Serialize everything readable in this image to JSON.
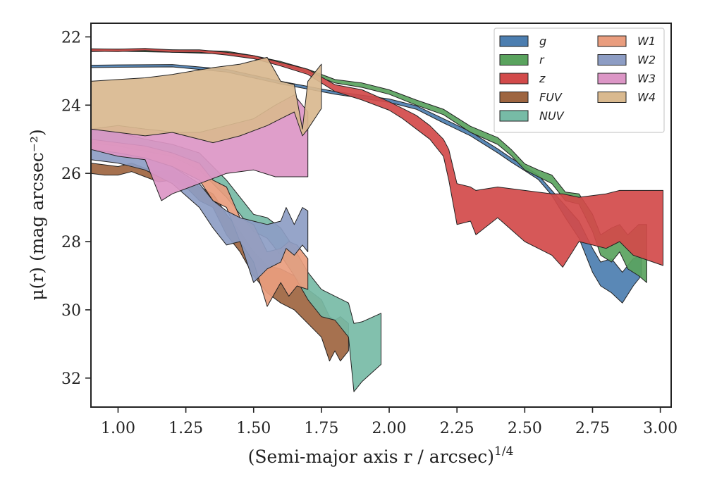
{
  "chart_data": {
    "type": "area",
    "xlabel": "(Semi-major axis r / arcsec)",
    "xlabel_exponent": "1/4",
    "ylabel": "μ(r) (mag arcsec⁻²)",
    "xlim": [
      0.9,
      3.04
    ],
    "ylim": [
      32.85,
      21.6
    ],
    "y_inverted": true,
    "grid": false,
    "legend_position": "top-right",
    "x_ticks": [
      "1.00",
      "1.25",
      "1.50",
      "1.75",
      "2.00",
      "2.25",
      "2.50",
      "2.75",
      "3.00"
    ],
    "x_tick_values": [
      1.0,
      1.25,
      1.5,
      1.75,
      2.0,
      2.25,
      2.5,
      2.75,
      3.0
    ],
    "y_ticks": [
      "22",
      "24",
      "26",
      "28",
      "30",
      "32"
    ],
    "y_tick_values": [
      22,
      24,
      26,
      28,
      30,
      32
    ],
    "series": [
      {
        "name": "g",
        "color": "#4c7eb0",
        "band": [
          [
            0.9,
            22.83,
            22.9
          ],
          [
            1.0,
            22.82,
            22.89
          ],
          [
            1.2,
            22.81,
            22.88
          ],
          [
            1.4,
            22.95,
            23.03
          ],
          [
            1.6,
            23.3,
            23.38
          ],
          [
            1.8,
            23.6,
            23.68
          ],
          [
            2.0,
            23.82,
            23.92
          ],
          [
            2.1,
            24.02,
            24.12
          ],
          [
            2.2,
            24.4,
            24.52
          ],
          [
            2.3,
            24.78,
            24.9
          ],
          [
            2.4,
            25.28,
            25.4
          ],
          [
            2.45,
            25.55,
            25.67
          ],
          [
            2.5,
            25.8,
            25.92
          ],
          [
            2.55,
            26.05,
            26.18
          ],
          [
            2.6,
            26.5,
            26.65
          ],
          [
            2.65,
            26.95,
            27.3
          ],
          [
            2.7,
            27.4,
            27.9
          ],
          [
            2.75,
            28.2,
            28.9
          ],
          [
            2.78,
            28.6,
            29.3
          ],
          [
            2.82,
            28.5,
            29.5
          ],
          [
            2.86,
            28.9,
            29.8
          ],
          [
            2.9,
            28.5,
            29.3
          ],
          [
            2.93,
            28.4,
            29.0
          ]
        ]
      },
      {
        "name": "r",
        "color": "#5aa35e",
        "band": [
          [
            0.9,
            22.37,
            22.43
          ],
          [
            1.0,
            22.36,
            22.42
          ],
          [
            1.2,
            22.38,
            22.45
          ],
          [
            1.4,
            22.42,
            22.5
          ],
          [
            1.5,
            22.55,
            22.63
          ],
          [
            1.6,
            22.72,
            22.8
          ],
          [
            1.7,
            22.95,
            23.05
          ],
          [
            1.8,
            23.25,
            23.35
          ],
          [
            1.9,
            23.35,
            23.48
          ],
          [
            2.0,
            23.55,
            23.68
          ],
          [
            2.1,
            23.85,
            24.0
          ],
          [
            2.2,
            24.12,
            24.28
          ],
          [
            2.3,
            24.62,
            24.8
          ],
          [
            2.4,
            24.95,
            25.15
          ],
          [
            2.45,
            25.3,
            25.48
          ],
          [
            2.5,
            25.72,
            25.9
          ],
          [
            2.55,
            25.9,
            26.1
          ],
          [
            2.6,
            26.05,
            26.3
          ],
          [
            2.65,
            26.55,
            26.8
          ],
          [
            2.7,
            26.6,
            26.9
          ],
          [
            2.75,
            27.2,
            27.7
          ],
          [
            2.78,
            27.8,
            28.4
          ],
          [
            2.82,
            27.6,
            28.6
          ],
          [
            2.85,
            27.5,
            28.3
          ],
          [
            2.88,
            27.8,
            28.8
          ],
          [
            2.92,
            27.5,
            29.0
          ],
          [
            2.95,
            27.5,
            29.2
          ]
        ]
      },
      {
        "name": "z",
        "color": "#d24a4a",
        "band": [
          [
            0.9,
            22.35,
            22.42
          ],
          [
            1.0,
            22.36,
            22.43
          ],
          [
            1.1,
            22.34,
            22.4
          ],
          [
            1.2,
            22.38,
            22.45
          ],
          [
            1.3,
            22.38,
            22.45
          ],
          [
            1.4,
            22.45,
            22.53
          ],
          [
            1.5,
            22.55,
            22.64
          ],
          [
            1.6,
            22.75,
            22.85
          ],
          [
            1.7,
            22.95,
            23.1
          ],
          [
            1.8,
            23.4,
            23.6
          ],
          [
            1.9,
            23.55,
            23.85
          ],
          [
            2.0,
            23.9,
            24.15
          ],
          [
            2.05,
            24.1,
            24.4
          ],
          [
            2.1,
            24.3,
            24.7
          ],
          [
            2.15,
            24.6,
            25.0
          ],
          [
            2.2,
            25.0,
            25.5
          ],
          [
            2.22,
            25.3,
            26.2
          ],
          [
            2.25,
            26.3,
            27.5
          ],
          [
            2.3,
            26.4,
            27.4
          ],
          [
            2.32,
            26.5,
            27.8
          ],
          [
            2.4,
            26.4,
            27.3
          ],
          [
            2.5,
            26.5,
            28.0
          ],
          [
            2.6,
            26.6,
            28.4
          ],
          [
            2.64,
            26.6,
            28.75
          ],
          [
            2.7,
            26.7,
            28.0
          ],
          [
            2.8,
            26.6,
            28.2
          ],
          [
            2.85,
            26.5,
            28.0
          ],
          [
            2.9,
            26.5,
            28.4
          ],
          [
            3.01,
            26.5,
            28.7
          ]
        ]
      },
      {
        "name": "FUV",
        "color": "#9e6540",
        "band": [
          [
            0.9,
            25.7,
            26.0
          ],
          [
            0.95,
            25.75,
            26.05
          ],
          [
            1.0,
            25.8,
            26.05
          ],
          [
            1.05,
            25.7,
            25.95
          ],
          [
            1.1,
            25.85,
            26.1
          ],
          [
            1.15,
            25.95,
            26.25
          ],
          [
            1.2,
            25.9,
            26.2
          ],
          [
            1.25,
            26.1,
            26.4
          ],
          [
            1.3,
            26.4,
            26.8
          ],
          [
            1.35,
            26.6,
            27.0
          ],
          [
            1.4,
            27.2,
            27.8
          ],
          [
            1.45,
            27.7,
            28.3
          ],
          [
            1.5,
            28.3,
            29.0
          ],
          [
            1.55,
            28.7,
            29.5
          ],
          [
            1.6,
            28.8,
            29.8
          ],
          [
            1.65,
            29.0,
            30.0
          ],
          [
            1.7,
            29.4,
            30.4
          ],
          [
            1.75,
            29.7,
            30.8
          ],
          [
            1.78,
            30.2,
            31.5
          ],
          [
            1.8,
            30.3,
            31.2
          ],
          [
            1.82,
            30.2,
            31.5
          ],
          [
            1.85,
            30.4,
            31.2
          ]
        ]
      },
      {
        "name": "NUV",
        "color": "#77bba6",
        "band": [
          [
            0.9,
            24.7,
            25.1
          ],
          [
            1.0,
            24.8,
            25.2
          ],
          [
            1.1,
            25.0,
            25.35
          ],
          [
            1.2,
            25.15,
            25.5
          ],
          [
            1.3,
            25.4,
            25.9
          ],
          [
            1.4,
            26.2,
            26.7
          ],
          [
            1.45,
            26.7,
            27.2
          ],
          [
            1.5,
            27.2,
            27.7
          ],
          [
            1.55,
            27.3,
            27.9
          ],
          [
            1.6,
            27.6,
            28.4
          ],
          [
            1.65,
            28.2,
            29.0
          ],
          [
            1.7,
            28.9,
            29.7
          ],
          [
            1.75,
            29.4,
            30.2
          ],
          [
            1.8,
            29.6,
            30.3
          ],
          [
            1.85,
            29.8,
            30.8
          ],
          [
            1.87,
            30.4,
            32.4
          ],
          [
            1.9,
            30.35,
            32.1
          ],
          [
            1.97,
            30.1,
            31.6
          ]
        ]
      },
      {
        "name": "W1",
        "color": "#e99d7e",
        "band": [
          [
            0.9,
            25.0,
            25.3
          ],
          [
            1.0,
            25.1,
            25.4
          ],
          [
            1.1,
            25.2,
            25.55
          ],
          [
            1.2,
            25.4,
            25.8
          ],
          [
            1.3,
            25.7,
            26.2
          ],
          [
            1.35,
            26.2,
            26.8
          ],
          [
            1.4,
            26.4,
            27.0
          ],
          [
            1.45,
            27.3,
            28.0
          ],
          [
            1.5,
            27.5,
            28.6
          ],
          [
            1.55,
            28.3,
            29.9
          ],
          [
            1.6,
            28.2,
            29.2
          ],
          [
            1.63,
            28.0,
            29.6
          ],
          [
            1.66,
            28.1,
            29.3
          ],
          [
            1.7,
            28.5,
            29.4
          ]
        ]
      },
      {
        "name": "W2",
        "color": "#8d9dc4",
        "band": [
          [
            0.9,
            25.3,
            25.6
          ],
          [
            1.0,
            25.4,
            25.7
          ],
          [
            1.1,
            25.55,
            25.9
          ],
          [
            1.2,
            25.8,
            26.3
          ],
          [
            1.3,
            26.3,
            27.0
          ],
          [
            1.35,
            26.8,
            27.6
          ],
          [
            1.4,
            27.1,
            28.1
          ],
          [
            1.45,
            27.3,
            28.0
          ],
          [
            1.5,
            27.4,
            29.2
          ],
          [
            1.55,
            27.5,
            28.8
          ],
          [
            1.6,
            27.4,
            28.6
          ],
          [
            1.62,
            27.0,
            28.2
          ],
          [
            1.65,
            27.5,
            28.4
          ],
          [
            1.68,
            27.0,
            28.1
          ],
          [
            1.7,
            27.1,
            28.3
          ]
        ]
      },
      {
        "name": "W3",
        "color": "#dc96c6",
        "band": [
          [
            0.9,
            24.7,
            25.3
          ],
          [
            1.0,
            24.6,
            25.5
          ],
          [
            1.1,
            24.7,
            25.6
          ],
          [
            1.16,
            24.75,
            26.8
          ],
          [
            1.2,
            24.8,
            26.6
          ],
          [
            1.3,
            24.8,
            26.3
          ],
          [
            1.4,
            24.6,
            26.0
          ],
          [
            1.5,
            24.4,
            25.9
          ],
          [
            1.58,
            24.0,
            26.1
          ],
          [
            1.65,
            23.7,
            26.1
          ],
          [
            1.7,
            24.2,
            26.1
          ]
        ]
      },
      {
        "name": "W4",
        "color": "#d9b98f",
        "band": [
          [
            0.9,
            23.3,
            24.7
          ],
          [
            1.0,
            23.25,
            24.8
          ],
          [
            1.1,
            23.2,
            24.9
          ],
          [
            1.2,
            23.1,
            24.8
          ],
          [
            1.35,
            22.9,
            25.1
          ],
          [
            1.45,
            22.8,
            24.9
          ],
          [
            1.55,
            22.6,
            24.6
          ],
          [
            1.6,
            23.3,
            24.4
          ],
          [
            1.65,
            23.4,
            24.2
          ],
          [
            1.68,
            24.7,
            24.9
          ],
          [
            1.7,
            23.3,
            24.7
          ],
          [
            1.75,
            22.8,
            24.1
          ]
        ]
      }
    ]
  }
}
